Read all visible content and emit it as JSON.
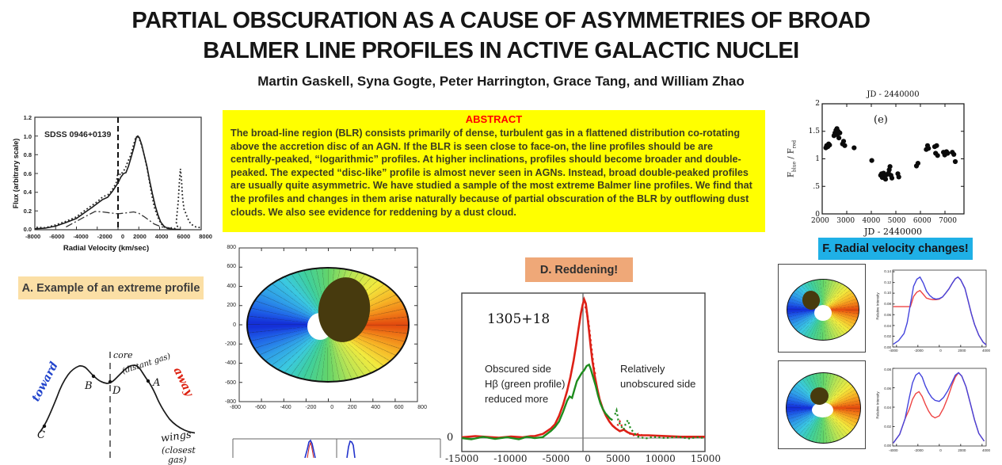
{
  "poster": {
    "title_line1": "PARTIAL OBSCURATION AS A CAUSE OF ASYMMETRIES OF BROAD",
    "title_line2": "BALMER LINE PROFILES IN ACTIVE GALACTIC NUCLEI",
    "authors": "Martin Gaskell, Syna Gogte, Peter Harrington, Grace Tang, and William Zhao"
  },
  "abstract": {
    "header": "ABSTRACT",
    "body": "The broad-line region (BLR) consists primarily of dense, turbulent gas in a flattened distribution co-rotating above the accretion disc of an AGN. If the BLR is seen close to face-on, the line profiles should be are centrally-peaked, “logarithmic” profiles. At higher inclinations, profiles should become broader and double-peaked. The expected “disc-like” profile is almost never seen in AGNs. Instead, broad double-peaked profiles are usually quite asymmetric. We have studied a sample of the most extreme Balmer line profiles. We find that the profiles and changes in them arise naturally because of partial obscuration of the BLR by outflowing dust clouds.  We also see evidence for reddening by a dust cloud."
  },
  "panelA": {
    "caption": "A.  Example of an extreme profile",
    "plot": {
      "label": "SDSS 0946+0139",
      "ylabel": "Flux (arbitrary scale)",
      "xlabel": "Radial Velocity (km/sec)",
      "y_ticks": [
        "1.2",
        "1.0",
        "0.8",
        "0.6",
        "0.4",
        "0.2",
        "0.0"
      ],
      "x_ticks": [
        "-8000",
        "-6000",
        "-4000",
        "-2000",
        "0",
        "2000",
        "4000",
        "6000",
        "8000"
      ]
    }
  },
  "sketch": {
    "toward": "toward",
    "away": "away",
    "core": "core",
    "core_sub": "(distant gas)",
    "wings": "wings",
    "wings_sub1": "(closest",
    "wings_sub2": "gas)",
    "pt_a": "A",
    "pt_b": "B",
    "pt_c": "C",
    "pt_d": "D"
  },
  "disk_large": {
    "x_ticks": [
      "-800",
      "-600",
      "-400",
      "-200",
      "0",
      "200",
      "400",
      "600",
      "800"
    ],
    "y_ticks": [
      "800",
      "600",
      "400",
      "200",
      "0",
      "-200",
      "-400",
      "-600",
      "-800"
    ]
  },
  "panelD": {
    "caption": "D.  Reddening!",
    "object": "1305+18",
    "left_note": [
      "Obscured side",
      "Hβ (green profile)",
      "reduced more"
    ],
    "right_note": [
      "Relatively",
      "unobscured side"
    ],
    "zero_label": "0",
    "x_ticks": [
      "-15000",
      "-10000",
      "-5000",
      "0",
      "5000",
      "10000",
      "15000"
    ]
  },
  "panelE": {
    "title": "JD - 2440000",
    "xlabel": "JD - 2440000",
    "panel_letter": "(e)",
    "ylabel": {
      "f1": "F",
      "sub1": "blue",
      "slash": " / ",
      "f2": "F",
      "sub2": "red"
    },
    "y_ticks": [
      "2",
      "1.5",
      "1",
      ".5",
      "0"
    ],
    "x_ticks": [
      "2000",
      "3000",
      "4000",
      "5000",
      "6000",
      "7000"
    ]
  },
  "panelF": {
    "caption": "F.  Radial velocity changes!"
  },
  "profile_top": {
    "ylabel": "Relative Intensity",
    "y_ticks": [
      "0.14",
      "0.12",
      "0.10",
      "0.08",
      "0.06",
      "0.04",
      "0.02",
      "0.00"
    ],
    "x_ticks": [
      "-4000",
      "-2000",
      "0",
      "2000",
      "4000"
    ]
  },
  "profile_bottom": {
    "ylabel": "Relative Intensity",
    "y_ticks": [
      "0.08",
      "0.06",
      "0.04",
      "0.02",
      "0.00"
    ],
    "x_ticks": [
      "-4000",
      "-2000",
      "0",
      "2000",
      "4000"
    ]
  },
  "colors": {
    "abstract_bg": "#ffff00",
    "abstract_header": "#ff0000",
    "panelA_caption_bg": "#fbdfa5",
    "panelD_caption_bg": "#efa878",
    "panelF_caption_bg": "#1fb0e6",
    "red_profile": "#dd2016",
    "green_profile": "#1e8c1e",
    "blue_profile": "#4444dd",
    "obscuring_cloud": "#473a0e"
  },
  "chart_data": [
    {
      "id": "panelA_extreme_profile",
      "type": "line",
      "title": "SDSS 0946+0139",
      "xlabel": "Radial Velocity (km/sec)",
      "ylabel": "Flux (arbitrary scale)",
      "xlim": [
        -8000,
        8000
      ],
      "ylim": [
        0,
        1.2
      ],
      "series": [
        {
          "name": "observed points (dotted)",
          "points": [
            [
              -8000,
              0.02
            ],
            [
              -6000,
              0.05
            ],
            [
              -4000,
              0.13
            ],
            [
              -3000,
              0.2
            ],
            [
              -2000,
              0.28
            ],
            [
              -1000,
              0.34
            ],
            [
              0,
              0.6
            ],
            [
              1000,
              0.68
            ],
            [
              1800,
              1.0
            ],
            [
              2600,
              0.6
            ],
            [
              3400,
              0.22
            ],
            [
              4500,
              0.05
            ],
            [
              5600,
              0.08
            ],
            [
              6000,
              0.65
            ],
            [
              6500,
              0.18
            ],
            [
              7000,
              0.06
            ],
            [
              8000,
              0.02
            ]
          ]
        },
        {
          "name": "fit (solid)",
          "points": [
            [
              -8000,
              0.01
            ],
            [
              -6000,
              0.04
            ],
            [
              -4000,
              0.12
            ],
            [
              -3000,
              0.2
            ],
            [
              -2000,
              0.28
            ],
            [
              -1000,
              0.35
            ],
            [
              0,
              0.5
            ],
            [
              1000,
              0.68
            ],
            [
              1775,
              1.0
            ],
            [
              2300,
              0.8
            ],
            [
              3000,
              0.38
            ],
            [
              3800,
              0.1
            ],
            [
              5000,
              0.01
            ]
          ]
        },
        {
          "name": "disc component (dash-dot)",
          "points": [
            [
              -5000,
              0.03
            ],
            [
              -4000,
              0.09
            ],
            [
              -3000,
              0.15
            ],
            [
              -2200,
              0.2
            ],
            [
              0,
              0.17
            ],
            [
              1500,
              0.19
            ],
            [
              2500,
              0.14
            ],
            [
              3500,
              0.06
            ],
            [
              5000,
              0.02
            ]
          ]
        }
      ]
    },
    {
      "id": "panelD_reddening",
      "type": "line",
      "object": "1305+18",
      "xlim": [
        -15000,
        15000
      ],
      "series": [
        {
          "name": "red profile",
          "color": "#dd2016",
          "points": [
            [
              -6000,
              0.02
            ],
            [
              -4000,
              0.07
            ],
            [
              -3000,
              0.16
            ],
            [
              -2000,
              0.34
            ],
            [
              -1000,
              0.65
            ],
            [
              0,
              0.98
            ],
            [
              300,
              0.95
            ],
            [
              700,
              0.77
            ],
            [
              1100,
              0.56
            ],
            [
              1700,
              0.36
            ],
            [
              2400,
              0.21
            ],
            [
              3200,
              0.12
            ],
            [
              4500,
              0.05
            ],
            [
              5000,
              0.06
            ],
            [
              7000,
              0.02
            ],
            [
              15000,
              0.01
            ]
          ]
        },
        {
          "name": "green profile (Hβ)",
          "color": "#1e8c1e",
          "points": [
            [
              -6000,
              0.01
            ],
            [
              -4000,
              0.05
            ],
            [
              -3000,
              0.12
            ],
            [
              -2000,
              0.27
            ],
            [
              -1000,
              0.36
            ],
            [
              0,
              0.49
            ],
            [
              600,
              0.53
            ],
            [
              1200,
              0.44
            ],
            [
              2000,
              0.26
            ],
            [
              3000,
              0.16
            ],
            [
              4100,
              0.2
            ],
            [
              5000,
              0.06
            ],
            [
              5500,
              0.13
            ],
            [
              7000,
              0.02
            ],
            [
              15000,
              0.01
            ]
          ]
        }
      ]
    },
    {
      "id": "panelE_flux_ratio",
      "type": "scatter",
      "title": "JD - 2440000",
      "xlabel": "JD - 2440000",
      "ylabel": "Fblue/Fred",
      "xlim": [
        2000,
        7500
      ],
      "ylim": [
        0,
        2
      ],
      "points": [
        [
          2150,
          1.2
        ],
        [
          2180,
          1.24
        ],
        [
          2230,
          1.22
        ],
        [
          2260,
          1.27
        ],
        [
          2300,
          1.25
        ],
        [
          2480,
          1.42
        ],
        [
          2520,
          1.47
        ],
        [
          2560,
          1.52
        ],
        [
          2600,
          1.55
        ],
        [
          2610,
          1.44
        ],
        [
          2650,
          1.5
        ],
        [
          2680,
          1.38
        ],
        [
          2720,
          1.47
        ],
        [
          2830,
          1.27
        ],
        [
          2870,
          1.32
        ],
        [
          2920,
          1.24
        ],
        [
          3300,
          1.2
        ],
        [
          4020,
          0.97
        ],
        [
          4380,
          0.7
        ],
        [
          4420,
          0.73
        ],
        [
          4450,
          0.66
        ],
        [
          4500,
          0.74
        ],
        [
          4540,
          0.68
        ],
        [
          4580,
          0.63
        ],
        [
          4620,
          0.71
        ],
        [
          4700,
          0.74
        ],
        [
          4730,
          0.8
        ],
        [
          4760,
          0.86
        ],
        [
          4800,
          0.7
        ],
        [
          4840,
          0.65
        ],
        [
          5080,
          0.73
        ],
        [
          5120,
          0.67
        ],
        [
          5840,
          0.87
        ],
        [
          5900,
          0.92
        ],
        [
          6240,
          1.17
        ],
        [
          6290,
          1.24
        ],
        [
          6330,
          1.19
        ],
        [
          6580,
          1.22
        ],
        [
          6620,
          1.1
        ],
        [
          6660,
          1.24
        ],
        [
          6700,
          1.06
        ],
        [
          6940,
          1.12
        ],
        [
          6990,
          1.07
        ],
        [
          7060,
          1.13
        ],
        [
          7110,
          1.1
        ],
        [
          7300,
          1.12
        ],
        [
          7360,
          1.08
        ],
        [
          7420,
          0.95
        ]
      ]
    },
    {
      "id": "profile_top",
      "type": "line",
      "xlim": [
        -4500,
        4500
      ],
      "ylim": [
        0,
        0.14
      ],
      "series": [
        {
          "name": "unobscured (blue)",
          "color": "#4444dd",
          "points": [
            [
              -3000,
              0.045
            ],
            [
              -2400,
              0.113
            ],
            [
              -1800,
              0.13
            ],
            [
              -1200,
              0.104
            ],
            [
              -600,
              0.091
            ],
            [
              0,
              0.09
            ],
            [
              600,
              0.1
            ],
            [
              1200,
              0.118
            ],
            [
              1750,
              0.13
            ],
            [
              2400,
              0.109
            ],
            [
              3000,
              0.062
            ],
            [
              3700,
              0.022
            ]
          ]
        },
        {
          "name": "partially obscured (red)",
          "color": "#ee4444",
          "points": [
            [
              -3000,
              0.042
            ],
            [
              -2400,
              0.094
            ],
            [
              -1800,
              0.105
            ],
            [
              -1200,
              0.091
            ],
            [
              -600,
              0.088
            ],
            [
              0,
              0.089
            ],
            [
              600,
              0.1
            ],
            [
              1200,
              0.118
            ],
            [
              1750,
              0.13
            ],
            [
              2400,
              0.109
            ],
            [
              3000,
              0.062
            ],
            [
              3700,
              0.022
            ]
          ]
        }
      ]
    },
    {
      "id": "profile_bottom",
      "type": "line",
      "xlim": [
        -4500,
        4500
      ],
      "ylim": [
        0,
        0.08
      ],
      "series": [
        {
          "name": "unobscured (blue)",
          "color": "#4444dd",
          "points": [
            [
              -2800,
              0.05
            ],
            [
              -2200,
              0.073
            ],
            [
              -1900,
              0.0755
            ],
            [
              -1300,
              0.062
            ],
            [
              -700,
              0.05
            ],
            [
              0,
              0.046
            ],
            [
              800,
              0.057
            ],
            [
              1500,
              0.073
            ],
            [
              1800,
              0.0755
            ],
            [
              2500,
              0.061
            ],
            [
              3300,
              0.027
            ],
            [
              4200,
              0.005
            ]
          ]
        },
        {
          "name": "partially obscured (red)",
          "color": "#ee4444",
          "points": [
            [
              -2800,
              0.038
            ],
            [
              -2200,
              0.054
            ],
            [
              -1900,
              0.056
            ],
            [
              -1300,
              0.043
            ],
            [
              -700,
              0.031
            ],
            [
              0,
              0.031
            ],
            [
              800,
              0.05
            ],
            [
              1500,
              0.071
            ],
            [
              1800,
              0.0755
            ],
            [
              2500,
              0.061
            ],
            [
              3300,
              0.027
            ],
            [
              4200,
              0.005
            ]
          ]
        }
      ]
    }
  ]
}
